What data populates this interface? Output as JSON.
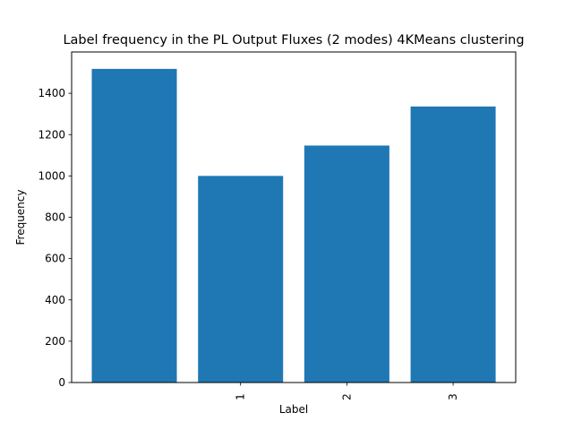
{
  "chart_data": {
    "type": "bar",
    "title": "Label frequency in the PL Output Fluxes (2 modes) 4KMeans clustering",
    "xlabel": "Label",
    "ylabel": "Frequency",
    "categories": [
      "",
      "1",
      "2",
      "3"
    ],
    "values": [
      1518,
      1000,
      1147,
      1336
    ],
    "ylim": [
      0,
      1600
    ],
    "yticks": [
      0,
      200,
      400,
      600,
      800,
      1000,
      1200,
      1400
    ],
    "xtick_rotation": "vertical",
    "grid": false,
    "bar_color": "#1f77b4"
  }
}
